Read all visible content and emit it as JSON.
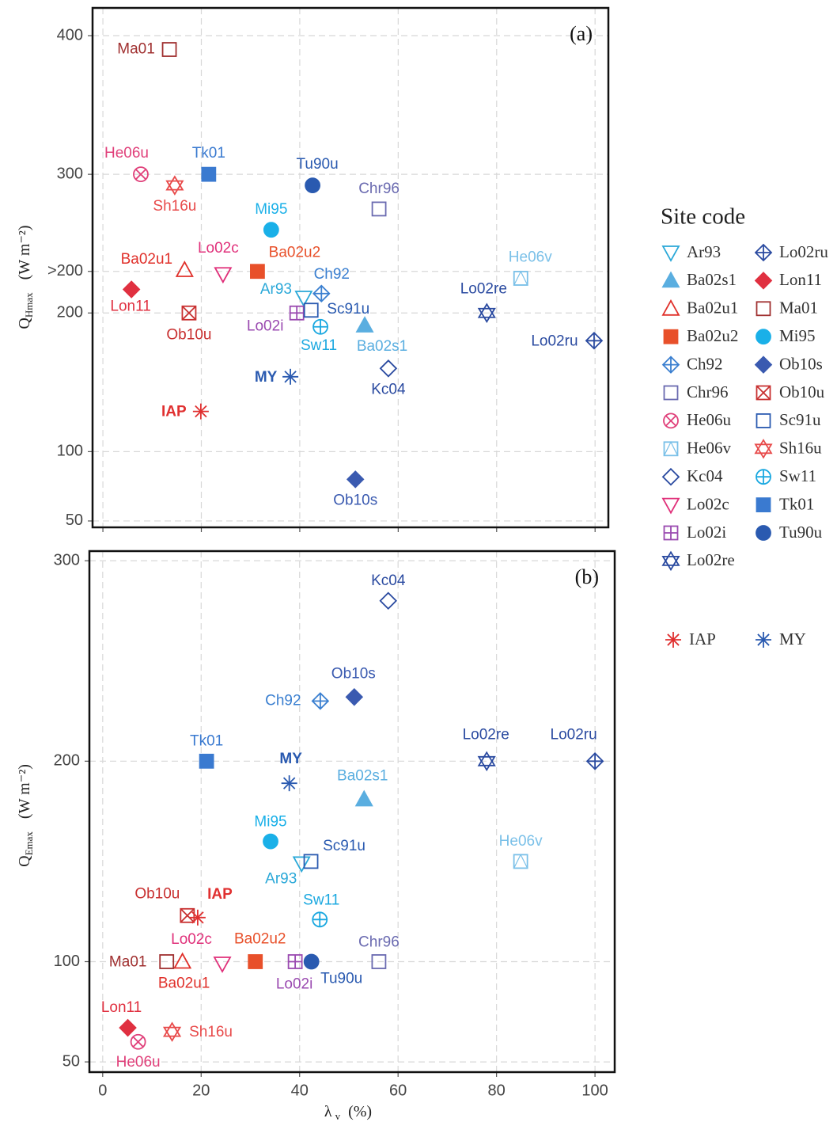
{
  "chart_data": [
    {
      "type": "scatter",
      "panel": "(a)",
      "ylabel": "Q",
      "ylabel_sub": "Hmax",
      "ylabel_unit": "(W m⁻²)",
      "xlim": [
        -2.1,
        102.7
      ],
      "ylim": [
        45.4,
        420
      ],
      "xticks": [
        0,
        20,
        40,
        60,
        80,
        100
      ],
      "yticks": [
        50,
        100,
        200,
        {
          "value": 230,
          "label": ">200"
        },
        300,
        400
      ],
      "grid": true,
      "legend_title": "Site code",
      "series": [
        {
          "name": "Ar93",
          "color": "#2aa8d8",
          "marker": "triangle-down-open",
          "x": [
            40.8
          ],
          "values": [
            211
          ]
        },
        {
          "name": "Ba02s1",
          "color": "#5aaee0",
          "marker": "triangle-up-filled",
          "x": [
            53.2
          ],
          "values": [
            191
          ]
        },
        {
          "name": "Ba02u1",
          "color": "#e0302a",
          "marker": "triangle-up-open",
          "x": [
            16.6
          ],
          "values": [
            231
          ]
        },
        {
          "name": "Ba02u2",
          "color": "#e8502a",
          "marker": "square-filled",
          "x": [
            31.4
          ],
          "values": [
            230
          ]
        },
        {
          "name": "Ch92",
          "color": "#3a7fd0",
          "marker": "diamond-plus",
          "x": [
            44.4
          ],
          "values": [
            214
          ]
        },
        {
          "name": "Chr96",
          "color": "#6a6ab0",
          "marker": "square-open",
          "x": [
            56.1
          ],
          "values": [
            275
          ]
        },
        {
          "name": "He06u",
          "color": "#e0407a",
          "marker": "circle-x",
          "x": [
            7.7
          ],
          "values": [
            300
          ]
        },
        {
          "name": "He06v",
          "color": "#7ac0e8",
          "marker": "square-triangle",
          "x": [
            84.9
          ],
          "values": [
            225
          ]
        },
        {
          "name": "Kc04",
          "color": "#2a4aa0",
          "marker": "diamond-open",
          "x": [
            58
          ],
          "values": [
            160
          ]
        },
        {
          "name": "Lo02c",
          "color": "#e0307a",
          "marker": "triangle-down-open",
          "x": [
            24.4
          ],
          "values": [
            228
          ]
        },
        {
          "name": "Lo02i",
          "color": "#9a4ab0",
          "marker": "square-plus",
          "x": [
            39.4
          ],
          "values": [
            200
          ]
        },
        {
          "name": "Lo02re",
          "color": "#2a4aa0",
          "marker": "hexagram-open",
          "x": [
            78
          ],
          "values": [
            200
          ]
        },
        {
          "name": "Lo02ru",
          "color": "#2a4aa0",
          "marker": "diamond-plus",
          "x": [
            99.8
          ],
          "values": [
            180
          ]
        },
        {
          "name": "Lon11",
          "color": "#e03040",
          "marker": "diamond-filled",
          "x": [
            5.8
          ],
          "values": [
            217
          ]
        },
        {
          "name": "Ma01",
          "color": "#a03030",
          "marker": "square-open",
          "x": [
            13.5
          ],
          "values": [
            390
          ]
        },
        {
          "name": "Mi95",
          "color": "#1ab0e8",
          "marker": "circle-filled",
          "x": [
            34.2
          ],
          "values": [
            260
          ]
        },
        {
          "name": "Ob10s",
          "color": "#3a5ab0",
          "marker": "diamond-filled",
          "x": [
            51.3
          ],
          "values": [
            80
          ]
        },
        {
          "name": "Ob10u",
          "color": "#c83030",
          "marker": "square-x",
          "x": [
            17.5
          ],
          "values": [
            200
          ]
        },
        {
          "name": "Sc91u",
          "color": "#2a5ab0",
          "marker": "square-open",
          "x": [
            42.3
          ],
          "values": [
            202
          ]
        },
        {
          "name": "Sh16u",
          "color": "#e84a4a",
          "marker": "hexagram-open",
          "x": [
            14.6
          ],
          "values": [
            292
          ]
        },
        {
          "name": "Sw11",
          "color": "#1aa8e0",
          "marker": "circle-plus",
          "x": [
            44.2
          ],
          "values": [
            190
          ]
        },
        {
          "name": "Tk01",
          "color": "#3a7ad0",
          "marker": "square-filled",
          "x": [
            21.5
          ],
          "values": [
            300
          ]
        },
        {
          "name": "Tu90u",
          "color": "#2a5ab0",
          "marker": "circle-filled",
          "x": [
            42.6
          ],
          "values": [
            292
          ]
        },
        {
          "name": "IAP",
          "color": "#e03030",
          "marker": "asterisk",
          "x": [
            19.9
          ],
          "values": [
            129
          ]
        },
        {
          "name": "MY",
          "color": "#2a5ab0",
          "marker": "asterisk",
          "x": [
            38.1
          ],
          "values": [
            154
          ]
        }
      ]
    },
    {
      "type": "scatter",
      "panel": "(b)",
      "ylabel": "Q",
      "ylabel_sub": "Emax",
      "ylabel_unit": "(W m⁻²)",
      "xlabel": "λ",
      "xlabel_sub": "v",
      "xlabel_unit": "(%)",
      "xlim": [
        -2.7,
        104
      ],
      "ylim": [
        44.9,
        304.8
      ],
      "xticks": [
        0,
        20,
        40,
        60,
        80,
        100
      ],
      "yticks": [
        50,
        100,
        200,
        300
      ],
      "grid": true,
      "series": [
        {
          "name": "Ar93",
          "x": [
            40.4
          ],
          "values": [
            149
          ]
        },
        {
          "name": "Ba02s1",
          "x": [
            53.1
          ],
          "values": [
            181
          ]
        },
        {
          "name": "Ba02u1",
          "x": [
            16.2
          ],
          "values": [
            100
          ]
        },
        {
          "name": "Ba02u2",
          "x": [
            31
          ],
          "values": [
            100
          ]
        },
        {
          "name": "Ch92",
          "x": [
            44.2
          ],
          "values": [
            230
          ]
        },
        {
          "name": "Chr96",
          "x": [
            56.1
          ],
          "values": [
            100
          ]
        },
        {
          "name": "He06u",
          "x": [
            7.2
          ],
          "values": [
            60
          ]
        },
        {
          "name": "He06v",
          "x": [
            84.9
          ],
          "values": [
            150
          ]
        },
        {
          "name": "Kc04",
          "x": [
            58
          ],
          "values": [
            280
          ]
        },
        {
          "name": "Lo02c",
          "x": [
            24.3
          ],
          "values": [
            99
          ]
        },
        {
          "name": "Lo02i",
          "x": [
            39.1
          ],
          "values": [
            100
          ]
        },
        {
          "name": "Lo02re",
          "x": [
            78
          ],
          "values": [
            200
          ]
        },
        {
          "name": "Lo02ru",
          "x": [
            100
          ],
          "values": [
            200
          ]
        },
        {
          "name": "Lon11",
          "x": [
            5.1
          ],
          "values": [
            67
          ]
        },
        {
          "name": "Ma01",
          "x": [
            13
          ],
          "values": [
            100
          ]
        },
        {
          "name": "Mi95",
          "x": [
            34.1
          ],
          "values": [
            160
          ]
        },
        {
          "name": "Ob10s",
          "x": [
            51.1
          ],
          "values": [
            232
          ]
        },
        {
          "name": "Ob10u",
          "x": [
            17.2
          ],
          "values": [
            123
          ]
        },
        {
          "name": "Sc91u",
          "x": [
            42.3
          ],
          "values": [
            150
          ]
        },
        {
          "name": "Sh16u",
          "x": [
            14.1
          ],
          "values": [
            65
          ]
        },
        {
          "name": "Sw11",
          "x": [
            44.1
          ],
          "values": [
            121
          ]
        },
        {
          "name": "Tk01",
          "x": [
            21.1
          ],
          "values": [
            200
          ]
        },
        {
          "name": "Tu90u",
          "x": [
            42.4
          ],
          "values": [
            100
          ]
        },
        {
          "name": "IAP",
          "x": [
            19.3
          ],
          "values": [
            122
          ]
        },
        {
          "name": "MY",
          "x": [
            37.9
          ],
          "values": [
            189
          ]
        }
      ]
    }
  ]
}
